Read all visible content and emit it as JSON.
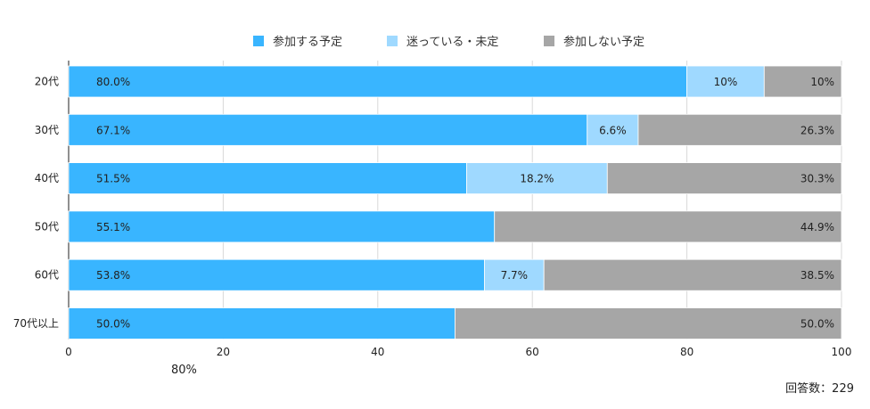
{
  "chart_data": {
    "type": "bar",
    "orientation": "horizontal",
    "stacked": true,
    "categories": [
      "20代",
      "30代",
      "40代",
      "50代",
      "60代",
      "70代以上"
    ],
    "series": [
      {
        "name": "参加する予定",
        "color": "#39b5ff",
        "values": [
          80.0,
          67.1,
          51.5,
          55.1,
          53.8,
          50.0
        ],
        "labels": [
          "80.0%",
          "67.1%",
          "51.5%",
          "55.1%",
          "53.8%",
          "50.0%"
        ]
      },
      {
        "name": "迷っている・未定",
        "color": "#9fd9ff",
        "values": [
          10.0,
          6.6,
          18.2,
          0,
          7.7,
          0
        ],
        "labels": [
          "10%",
          "6.6%",
          "18.2%",
          "",
          "7.7%",
          ""
        ]
      },
      {
        "name": "参加しない予定",
        "color": "#a6a6a6",
        "values": [
          10.0,
          26.3,
          30.3,
          44.9,
          38.5,
          50.0
        ],
        "labels": [
          "10%",
          "26.3%",
          "30.3%",
          "44.9%",
          "38.5%",
          "50.0%"
        ]
      }
    ],
    "xlim": [
      0,
      100
    ],
    "xticks": [
      "0",
      "20",
      "40",
      "60",
      "80",
      "100"
    ],
    "grid": true,
    "legend_position": "top-center"
  },
  "notes": {
    "stray_label": "80%",
    "respondents": "回答数：229"
  }
}
